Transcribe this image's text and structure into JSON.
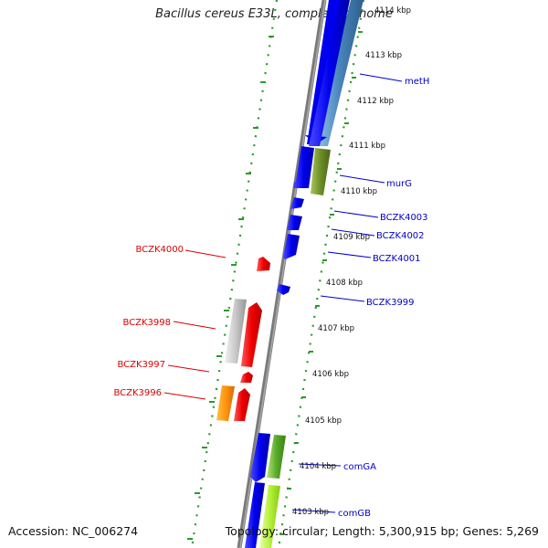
{
  "title": "Bacillus cereus E33L, complete genome",
  "accession": "Accession: NC_006274",
  "summary": "Topology: circular; Length: 5,300,915 bp; Genes: 5,269",
  "colors": {
    "backbone": "#7a7a7a",
    "ruler": "#2a9a2a",
    "forward_label": "#0000cc",
    "reverse_label": "#dd0000",
    "gene_blue": "#0000ee",
    "gene_red": "#ee0000"
  },
  "scale_ticks": [
    {
      "label": "4114 kbp"
    },
    {
      "label": "4113 kbp"
    },
    {
      "label": "4112 kbp"
    },
    {
      "label": "4111 kbp"
    },
    {
      "label": "4110 kbp"
    },
    {
      "label": "4109 kbp"
    },
    {
      "label": "4108 kbp"
    },
    {
      "label": "4107 kbp"
    },
    {
      "label": "4106 kbp"
    },
    {
      "label": "4105 kbp"
    },
    {
      "label": "4104 kbp"
    },
    {
      "label": "4103 kbp"
    }
  ],
  "forward_genes": [
    "metH",
    "murG",
    "BCZK4003",
    "BCZK4002",
    "BCZK4001",
    "BCZK3999",
    "comGA",
    "comGB"
  ],
  "reverse_genes": [
    "BCZK4000",
    "BCZK3998",
    "BCZK3997",
    "BCZK3996"
  ]
}
